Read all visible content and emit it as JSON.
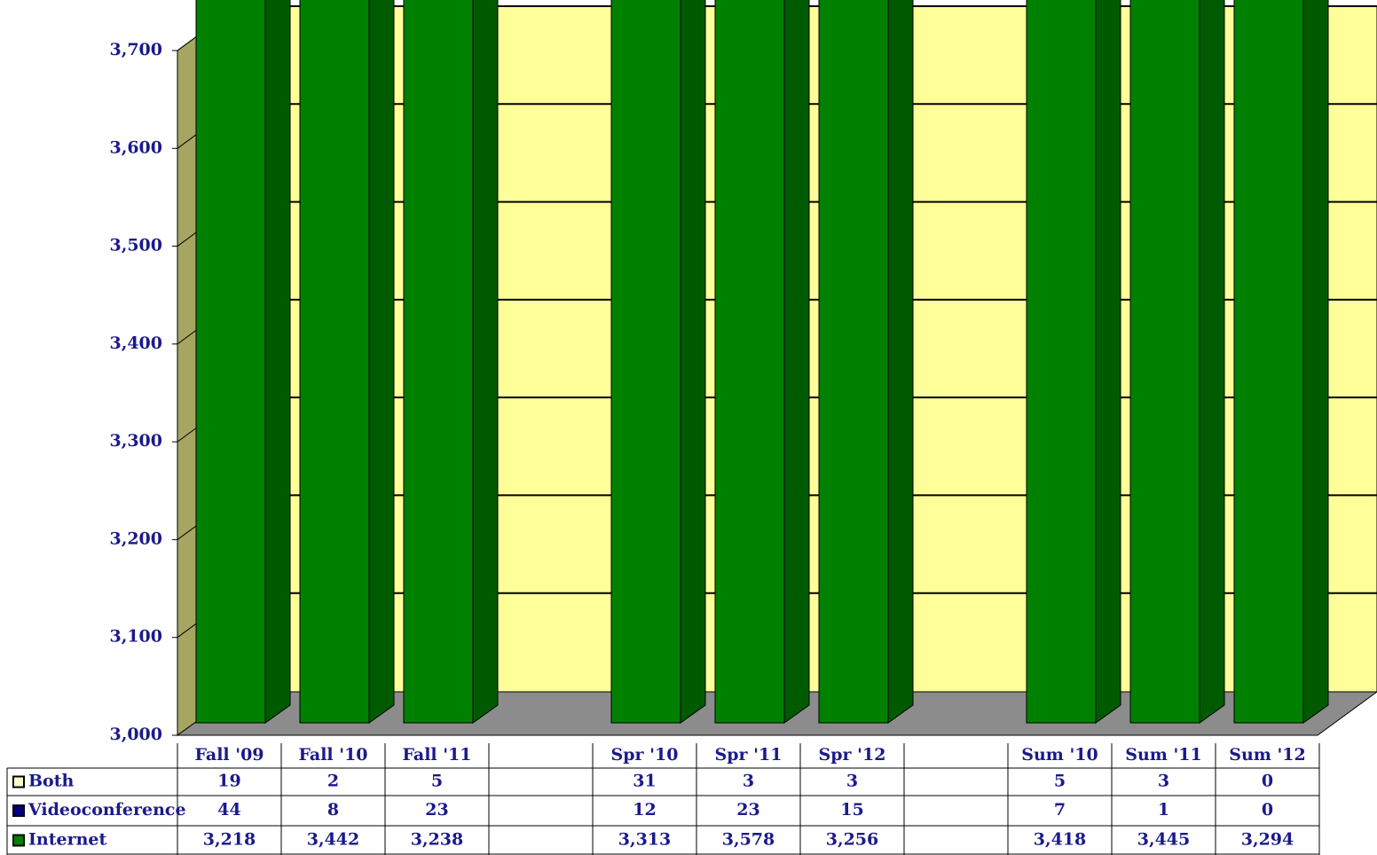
{
  "chart_data": {
    "type": "bar3d-stacked",
    "categories": [
      "Fall '09",
      "Fall '10",
      "Fall '11",
      null,
      "Spr '10",
      "Spr '11",
      "Spr '12",
      null,
      "Sum '10",
      "Sum '11",
      "Sum '12"
    ],
    "series": [
      {
        "name": "Both",
        "color": "#ffffcc",
        "values": [
          19,
          2,
          5,
          null,
          31,
          3,
          3,
          null,
          5,
          3,
          0
        ]
      },
      {
        "name": "Videoconference",
        "color": "#000080",
        "values": [
          44,
          8,
          23,
          null,
          12,
          23,
          15,
          null,
          7,
          1,
          0
        ]
      },
      {
        "name": "Internet",
        "color": "#008000",
        "values": [
          3218,
          3442,
          3238,
          null,
          3313,
          3578,
          3256,
          null,
          3418,
          3445,
          3294
        ],
        "value_labels": [
          "3,218",
          "3,442",
          "3,238",
          null,
          "3,313",
          "3,578",
          "3,256",
          null,
          "3,418",
          "3,445",
          "3,294"
        ]
      }
    ],
    "ylim": [
      3000,
      3700
    ],
    "yticks": [
      {
        "value": 3000,
        "label": "3,000"
      },
      {
        "value": 3100,
        "label": "3,100"
      },
      {
        "value": 3200,
        "label": "3,200"
      },
      {
        "value": 3300,
        "label": "3,300"
      },
      {
        "value": 3400,
        "label": "3,400"
      },
      {
        "value": 3500,
        "label": "3,500"
      },
      {
        "value": 3600,
        "label": "3,600"
      },
      {
        "value": 3700,
        "label": "3,700"
      }
    ],
    "grid": true
  }
}
